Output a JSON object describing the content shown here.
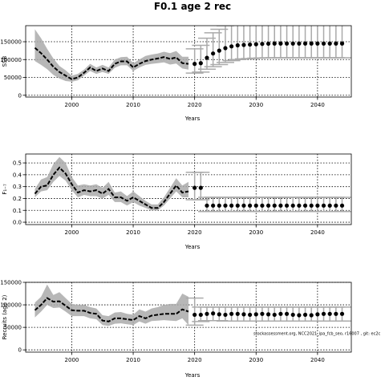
{
  "title": "F0.1 age 2 rec",
  "colors": {
    "band": "#aaaaaa",
    "line": "#000000",
    "errorbar": "#aaaaaa",
    "grid": "#000000"
  },
  "chart_data": [
    {
      "type": "line",
      "xlabel": "Years",
      "ylabel": "SSB",
      "xlim": [
        1992.5,
        2045.5
      ],
      "ylim": [
        -5000,
        195000
      ],
      "xticks": [
        2000,
        2010,
        2020,
        2030,
        2040
      ],
      "yticks": [
        0,
        50000,
        100000,
        150000
      ],
      "ytick_labels": [
        "0",
        "50000",
        "100000",
        "150000"
      ],
      "grid": true,
      "series": [
        {
          "style": "line",
          "x": [
            1994,
            1995,
            1996,
            1997,
            1998,
            1999,
            2000,
            2001,
            2002,
            2003,
            2004,
            2005,
            2006,
            2007,
            2008,
            2009,
            2010,
            2011,
            2012,
            2013,
            2014,
            2015,
            2016,
            2017,
            2018,
            2019
          ],
          "y": [
            133000,
            118000,
            100000,
            80000,
            65000,
            55000,
            45000,
            50000,
            63000,
            78000,
            68000,
            75000,
            68000,
            88000,
            95000,
            95000,
            78000,
            88000,
            96000,
            100000,
            103000,
            107000,
            102000,
            106000,
            90000,
            88000
          ],
          "lower": [
            96000,
            85000,
            73000,
            57000,
            47000,
            40000,
            38000,
            42000,
            55000,
            68000,
            60000,
            65000,
            60000,
            77000,
            84000,
            84000,
            68000,
            78000,
            85000,
            88000,
            90000,
            92000,
            86000,
            89000,
            75000,
            72000
          ],
          "upper": [
            185000,
            160000,
            130000,
            103000,
            82000,
            70000,
            55000,
            60000,
            72000,
            88000,
            78000,
            85000,
            78000,
            100000,
            107000,
            108000,
            90000,
            100000,
            110000,
            114000,
            117000,
            122000,
            118000,
            124000,
            108000,
            108000
          ]
        },
        {
          "style": "points",
          "x": [
            2020,
            2021,
            2022,
            2023,
            2024,
            2025,
            2026,
            2027,
            2028,
            2029,
            2030,
            2031,
            2032,
            2033,
            2034,
            2035,
            2036,
            2037,
            2038,
            2039,
            2040,
            2041,
            2042,
            2043,
            2044
          ],
          "y": [
            88000,
            90000,
            105000,
            117000,
            125000,
            132000,
            137000,
            140000,
            141000,
            142000,
            143000,
            144000,
            144500,
            145000,
            145000,
            145000,
            145000,
            145000,
            145000,
            145000,
            145000,
            145000,
            145000,
            145000,
            145000
          ],
          "lower": [
            62000,
            65000,
            73000,
            80000,
            86000,
            92000,
            97000,
            100000,
            102000,
            103000,
            104000,
            104500,
            105000,
            105000,
            105000,
            105000,
            105000,
            105000,
            105000,
            105000,
            105000,
            105000,
            105000,
            105000,
            105000
          ],
          "upper": [
            130000,
            140000,
            160000,
            175000,
            185000,
            195000,
            205000,
            212000,
            218000,
            222000,
            225000,
            228000,
            230000,
            230000,
            230000,
            230000,
            230000,
            230000,
            230000,
            230000,
            230000,
            230000,
            230000,
            230000,
            230000
          ]
        }
      ]
    },
    {
      "type": "line",
      "xlabel": "Years",
      "ylabel": "F₁₋₇",
      "xlim": [
        1992.5,
        2045.5
      ],
      "ylim": [
        -0.02,
        0.575
      ],
      "xticks": [
        2000,
        2010,
        2020,
        2030,
        2040
      ],
      "yticks": [
        0.0,
        0.1,
        0.2,
        0.3,
        0.4,
        0.5
      ],
      "ytick_labels": [
        "0.0",
        "0.1",
        "0.2",
        "0.3",
        "0.4",
        "0.5"
      ],
      "grid": true,
      "series": [
        {
          "style": "line",
          "x": [
            1994,
            1995,
            1996,
            1997,
            1998,
            1999,
            2000,
            2001,
            2002,
            2003,
            2004,
            2005,
            2006,
            2007,
            2008,
            2009,
            2010,
            2011,
            2012,
            2013,
            2014,
            2015,
            2016,
            2017,
            2018,
            2019
          ],
          "y": [
            0.24,
            0.3,
            0.31,
            0.4,
            0.46,
            0.41,
            0.32,
            0.25,
            0.27,
            0.26,
            0.27,
            0.24,
            0.28,
            0.21,
            0.21,
            0.18,
            0.21,
            0.18,
            0.15,
            0.12,
            0.12,
            0.17,
            0.24,
            0.31,
            0.25,
            0.26
          ],
          "lower": [
            0.21,
            0.26,
            0.27,
            0.34,
            0.39,
            0.35,
            0.27,
            0.21,
            0.23,
            0.22,
            0.22,
            0.2,
            0.23,
            0.17,
            0.17,
            0.14,
            0.17,
            0.14,
            0.12,
            0.1,
            0.1,
            0.14,
            0.2,
            0.26,
            0.21,
            0.21
          ],
          "upper": [
            0.28,
            0.36,
            0.38,
            0.49,
            0.55,
            0.5,
            0.38,
            0.31,
            0.32,
            0.31,
            0.32,
            0.29,
            0.34,
            0.25,
            0.26,
            0.22,
            0.26,
            0.22,
            0.18,
            0.15,
            0.15,
            0.21,
            0.29,
            0.37,
            0.31,
            0.34
          ]
        },
        {
          "style": "points",
          "x": [
            2020,
            2021,
            2022,
            2023,
            2024,
            2025,
            2026,
            2027,
            2028,
            2029,
            2030,
            2031,
            2032,
            2033,
            2034,
            2035,
            2036,
            2037,
            2038,
            2039,
            2040,
            2041,
            2042,
            2043,
            2044
          ],
          "y": [
            0.29,
            0.29,
            0.14,
            0.14,
            0.14,
            0.14,
            0.14,
            0.14,
            0.14,
            0.14,
            0.14,
            0.14,
            0.14,
            0.14,
            0.14,
            0.14,
            0.14,
            0.14,
            0.14,
            0.14,
            0.14,
            0.14,
            0.14,
            0.14,
            0.14
          ],
          "lower": [
            0.19,
            0.19,
            0.09,
            0.09,
            0.09,
            0.09,
            0.09,
            0.09,
            0.09,
            0.09,
            0.09,
            0.09,
            0.09,
            0.09,
            0.09,
            0.09,
            0.09,
            0.09,
            0.09,
            0.09,
            0.09,
            0.09,
            0.09,
            0.09,
            0.09
          ],
          "upper": [
            0.42,
            0.42,
            0.21,
            0.21,
            0.21,
            0.21,
            0.21,
            0.21,
            0.21,
            0.21,
            0.21,
            0.21,
            0.21,
            0.21,
            0.21,
            0.21,
            0.21,
            0.21,
            0.21,
            0.21,
            0.21,
            0.21,
            0.21,
            0.21,
            0.21
          ]
        }
      ]
    },
    {
      "type": "line",
      "xlabel": "Years",
      "ylabel": "Recruits (age 2)",
      "xlim": [
        1992.5,
        2045.5
      ],
      "ylim": [
        -5000,
        150000
      ],
      "xticks": [
        2000,
        2010,
        2020,
        2030,
        2040
      ],
      "yticks": [
        0,
        50000,
        100000,
        150000
      ],
      "ytick_labels": [
        "0",
        "50000",
        "100000",
        "150000"
      ],
      "grid": true,
      "annotation": "stockassessment.org, NCC2021_ipa_fcb_seo, r16007 , git: ec2c",
      "series": [
        {
          "style": "line",
          "x": [
            1994,
            1995,
            1996,
            1997,
            1998,
            1999,
            2000,
            2001,
            2002,
            2003,
            2004,
            2005,
            2006,
            2007,
            2008,
            2009,
            2010,
            2011,
            2012,
            2013,
            2014,
            2015,
            2016,
            2017,
            2018,
            2019
          ],
          "y": [
            88000,
            100000,
            115000,
            107000,
            108000,
            98000,
            88000,
            87000,
            87000,
            82000,
            80000,
            65000,
            63000,
            70000,
            70000,
            68000,
            66000,
            75000,
            70000,
            76000,
            78000,
            80000,
            80000,
            80000,
            90000,
            85000
          ],
          "lower": [
            72000,
            85000,
            100000,
            93000,
            94000,
            85000,
            75000,
            75000,
            75000,
            70000,
            68000,
            55000,
            53000,
            58000,
            59000,
            57000,
            55000,
            63000,
            58000,
            64000,
            65000,
            66000,
            65000,
            64000,
            70000,
            55000
          ],
          "upper": [
            105000,
            118000,
            145000,
            122000,
            128000,
            115000,
            102000,
            100000,
            100000,
            95000,
            92000,
            77000,
            75000,
            83000,
            84000,
            80000,
            78000,
            90000,
            85000,
            92000,
            95000,
            100000,
            102000,
            102000,
            125000,
            118000
          ]
        },
        {
          "style": "points",
          "x": [
            2020,
            2021,
            2022,
            2023,
            2024,
            2025,
            2026,
            2027,
            2028,
            2029,
            2030,
            2031,
            2032,
            2033,
            2034,
            2035,
            2036,
            2037,
            2038,
            2039,
            2040,
            2041,
            2042,
            2043,
            2044
          ],
          "y": [
            78000,
            78000,
            80000,
            81000,
            79000,
            78000,
            80000,
            80000,
            79000,
            78000,
            79000,
            80000,
            79000,
            78000,
            80000,
            80000,
            78000,
            77000,
            78000,
            77000,
            79000,
            80000,
            80000,
            80000,
            80000
          ],
          "lower": [
            55000,
            63000,
            65000,
            65000,
            65000,
            64000,
            64000,
            64000,
            64000,
            64000,
            64000,
            64000,
            64000,
            64000,
            64000,
            64000,
            64000,
            64000,
            64000,
            64000,
            64000,
            64000,
            64000,
            64000,
            64000
          ],
          "upper": [
            115000,
            95000,
            95000,
            95000,
            95000,
            95000,
            95000,
            95000,
            95000,
            95000,
            95000,
            95000,
            95000,
            95000,
            95000,
            95000,
            95000,
            95000,
            95000,
            95000,
            95000,
            95000,
            95000,
            95000,
            95000
          ]
        }
      ]
    }
  ]
}
